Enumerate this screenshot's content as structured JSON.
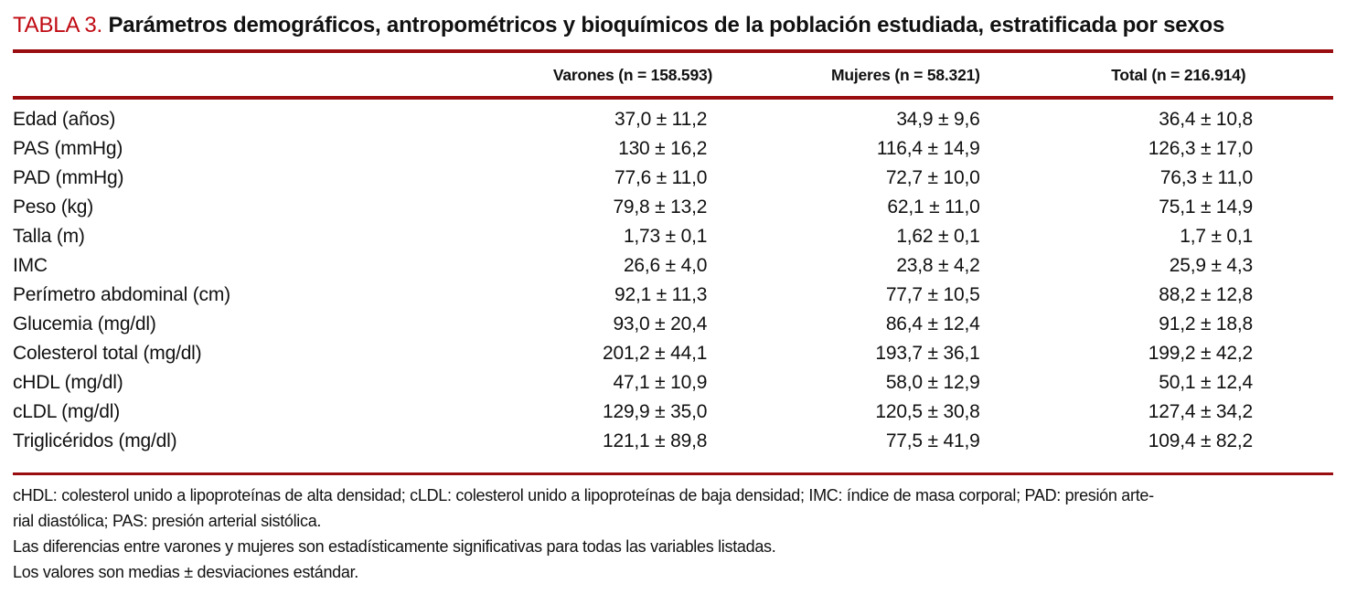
{
  "colors": {
    "accent_red": "#c00a12",
    "rule_red": "#990d10",
    "text": "#111111"
  },
  "table": {
    "label": "TABLA 3.",
    "title": "Parámetros demográficos, antropométricos y bioquímicos de la población estudiada, estratificada por sexos",
    "columns": [
      "Varones (n = 158.593)",
      "Mujeres (n = 58.321)",
      "Total (n = 216.914)"
    ],
    "rows": [
      {
        "label": "Edad (años)",
        "varones": "37,0 ± 11,2",
        "mujeres": "34,9 ± 9,6",
        "total": "36,4 ± 10,8"
      },
      {
        "label": "PAS (mmHg)",
        "varones": "130 ± 16,2",
        "mujeres": "116,4 ± 14,9",
        "total": "126,3 ± 17,0"
      },
      {
        "label": "PAD (mmHg)",
        "varones": "77,6 ± 11,0",
        "mujeres": "72,7 ± 10,0",
        "total": "76,3 ± 11,0"
      },
      {
        "label": "Peso (kg)",
        "varones": "79,8 ± 13,2",
        "mujeres": "62,1 ± 11,0",
        "total": "75,1 ± 14,9"
      },
      {
        "label": "Talla (m)",
        "varones": "1,73 ± 0,1",
        "mujeres": "1,62 ± 0,1",
        "total": "1,7 ± 0,1"
      },
      {
        "label": "IMC",
        "varones": "26,6 ± 4,0",
        "mujeres": "23,8 ± 4,2",
        "total": "25,9 ± 4,3"
      },
      {
        "label": "Perímetro abdominal (cm)",
        "varones": "92,1 ± 11,3",
        "mujeres": "77,7 ± 10,5",
        "total": "88,2 ± 12,8"
      },
      {
        "label": "Glucemia (mg/dl)",
        "varones": "93,0 ± 20,4",
        "mujeres": "86,4 ± 12,4",
        "total": "91,2 ± 18,8"
      },
      {
        "label": "Colesterol total (mg/dl)",
        "varones": "201,2 ± 44,1",
        "mujeres": "193,7 ± 36,1",
        "total": "199,2 ± 42,2"
      },
      {
        "label": "cHDL (mg/dl)",
        "varones": "47,1 ± 10,9",
        "mujeres": "58,0 ± 12,9",
        "total": "50,1 ± 12,4"
      },
      {
        "label": "cLDL (mg/dl)",
        "varones": "129,9 ± 35,0",
        "mujeres": "120,5 ± 30,8",
        "total": "127,4 ± 34,2"
      },
      {
        "label": "Triglicéridos (mg/dl)",
        "varones": "121,1 ± 89,8",
        "mujeres": "77,5 ± 41,9",
        "total": "109,4 ± 82,2"
      }
    ],
    "footnote_lines": [
      "cHDL: colesterol unido a lipoproteínas de alta densidad; cLDL: colesterol unido a lipoproteínas de baja densidad; IMC: índice de masa corporal; PAD: presión arte-",
      "rial diastólica; PAS: presión arterial sistólica.",
      "Las diferencias entre varones y mujeres son estadísticamente significativas para todas las variables listadas.",
      "Los valores son medias ± desviaciones estándar."
    ]
  }
}
